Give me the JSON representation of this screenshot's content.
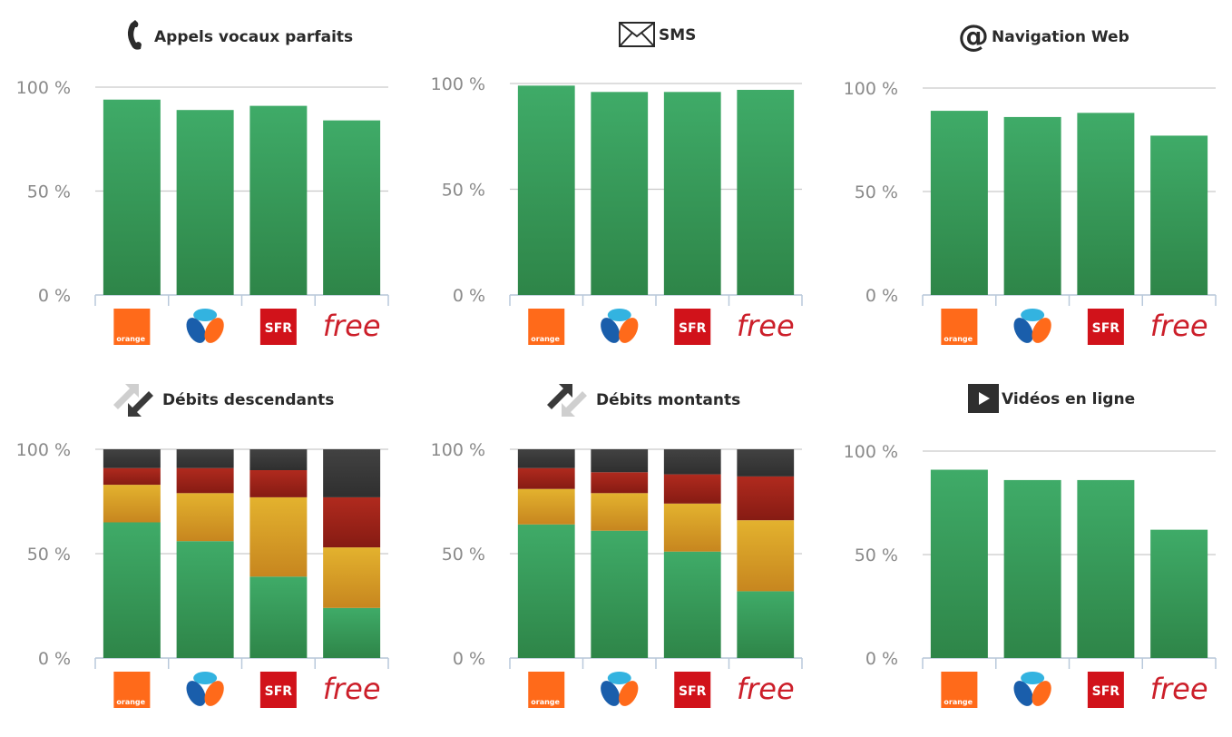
{
  "colors": {
    "green_top": "#3fab68",
    "green_bottom": "#2e8548",
    "yellow_top": "#e3b22e",
    "yellow_bottom": "#c7861f",
    "red_top": "#b02a1e",
    "red_bottom": "#861b13",
    "dark_top": "#424242",
    "dark_bottom": "#2f2f2f",
    "orange_brand": "#ff6a1a",
    "sfr_red": "#d1121a",
    "free_red": "#cc1f2a",
    "bouygues_blue": "#1a5eab",
    "bouygues_cyan": "#33b3e0"
  },
  "operators": [
    {
      "key": "orange",
      "logo_text": "orange"
    },
    {
      "key": "bouygues",
      "logo_text": ""
    },
    {
      "key": "sfr",
      "logo_text": "SFR"
    },
    {
      "key": "free",
      "logo_text": "free"
    }
  ],
  "chart_data": [
    {
      "type": "bar",
      "title": "Appels vocaux parfaits",
      "icon": "phone-icon",
      "categories": [
        "orange",
        "bouygues",
        "sfr",
        "free"
      ],
      "yticks": [
        "100 %",
        "50 %",
        "0 %"
      ],
      "ylim": [
        0,
        100
      ],
      "series": [
        {
          "color": "green",
          "values": [
            94,
            89,
            91,
            84
          ]
        }
      ]
    },
    {
      "type": "bar",
      "title": "SMS",
      "icon": "envelope-icon",
      "categories": [
        "orange",
        "bouygues",
        "sfr",
        "free"
      ],
      "yticks": [
        "100 %",
        "50 %",
        "0 %"
      ],
      "ylim": [
        0,
        100
      ],
      "series": [
        {
          "color": "green",
          "values": [
            99,
            96,
            96,
            97
          ]
        }
      ]
    },
    {
      "type": "bar",
      "title": "Navigation Web",
      "icon": "at-sign-icon",
      "categories": [
        "orange",
        "bouygues",
        "sfr",
        "free"
      ],
      "yticks": [
        "100 %",
        "50 %",
        "0 %"
      ],
      "ylim": [
        0,
        100
      ],
      "series": [
        {
          "color": "green",
          "values": [
            89,
            86,
            88,
            77
          ]
        }
      ]
    },
    {
      "type": "bar",
      "stacked": true,
      "title": "Débits descendants",
      "icon": "download-arrows-icon",
      "categories": [
        "orange",
        "bouygues",
        "sfr",
        "free"
      ],
      "yticks": [
        "100 %",
        "50 %",
        "0 %"
      ],
      "ylim": [
        0,
        100
      ],
      "series": [
        {
          "color": "green",
          "values": [
            65,
            56,
            39,
            24
          ]
        },
        {
          "color": "yellow",
          "values": [
            18,
            23,
            38,
            29
          ]
        },
        {
          "color": "red",
          "values": [
            8,
            12,
            13,
            24
          ]
        },
        {
          "color": "dark",
          "values": [
            9,
            9,
            10,
            23
          ]
        }
      ]
    },
    {
      "type": "bar",
      "stacked": true,
      "title": "Débits montants",
      "icon": "upload-arrows-icon",
      "categories": [
        "orange",
        "bouygues",
        "sfr",
        "free"
      ],
      "yticks": [
        "100 %",
        "50 %",
        "0 %"
      ],
      "ylim": [
        0,
        100
      ],
      "series": [
        {
          "color": "green",
          "values": [
            64,
            61,
            51,
            32
          ]
        },
        {
          "color": "yellow",
          "values": [
            17,
            18,
            23,
            34
          ]
        },
        {
          "color": "red",
          "values": [
            10,
            10,
            14,
            21
          ]
        },
        {
          "color": "dark",
          "values": [
            9,
            11,
            12,
            13
          ]
        }
      ]
    },
    {
      "type": "bar",
      "title": "Vidéos en ligne",
      "icon": "play-icon",
      "categories": [
        "orange",
        "bouygues",
        "sfr",
        "free"
      ],
      "yticks": [
        "100 %",
        "50 %",
        "0 %"
      ],
      "ylim": [
        0,
        100
      ],
      "series": [
        {
          "color": "green",
          "values": [
            91,
            86,
            86,
            62
          ]
        }
      ]
    }
  ]
}
